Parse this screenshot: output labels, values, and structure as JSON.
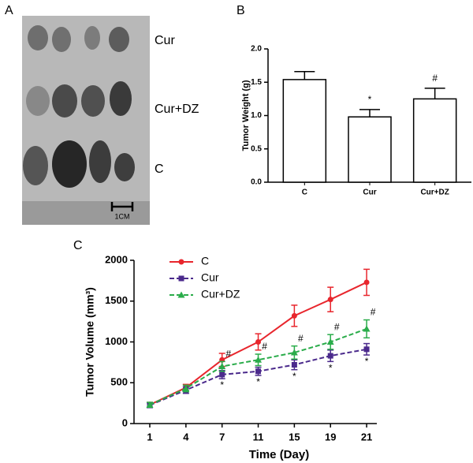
{
  "panel_a": {
    "label": "A",
    "rows": [
      "Cur",
      "Cur+DZ",
      "C"
    ],
    "scale_bar": "1CM"
  },
  "chart_data": [
    {
      "type": "bar",
      "panel": "B",
      "y_label": "Tumor Weight (g)",
      "categories": [
        "C",
        "Cur",
        "Cur+DZ"
      ],
      "values": [
        1.54,
        0.98,
        1.25
      ],
      "errors": [
        0.12,
        0.11,
        0.16
      ],
      "point_labels": [
        null,
        "*",
        "#"
      ],
      "color": "#ffffff",
      "ylim": [
        0,
        2
      ],
      "yticks": [
        {
          "value": 0,
          "label": "0.0"
        },
        {
          "value": 0.5,
          "label": "0.5"
        },
        {
          "value": 1,
          "label": "1.0"
        },
        {
          "value": 1.5,
          "label": "1.5"
        },
        {
          "value": 2,
          "label": "2.0"
        }
      ]
    },
    {
      "type": "line",
      "panel": "C",
      "y_label": "Tumor Volume (mm³)",
      "x_label": "Time (Day)",
      "categories": [
        "1",
        "4",
        "7",
        "11",
        "15",
        "19",
        "21"
      ],
      "series": [
        {
          "name": "C",
          "color": "#e8262d",
          "marker": "circle",
          "dashed": false,
          "values": [
            230,
            440,
            780,
            1000,
            1320,
            1520,
            1730
          ],
          "errors": [
            30,
            40,
            80,
            100,
            130,
            150,
            160
          ],
          "point_labels": [
            null,
            null,
            null,
            null,
            null,
            null,
            null
          ],
          "label_side": "above"
        },
        {
          "name": "Cur",
          "color": "#4b2a8c",
          "marker": "square",
          "dashed": true,
          "values": [
            225,
            410,
            600,
            640,
            720,
            830,
            910
          ],
          "errors": [
            30,
            40,
            50,
            50,
            60,
            70,
            70
          ],
          "point_labels": [
            null,
            null,
            "*",
            "*",
            "*",
            "*",
            "*"
          ],
          "label_side": "below"
        },
        {
          "name": "Cur+DZ",
          "color": "#2aac4a",
          "marker": "triangle",
          "dashed": true,
          "values": [
            230,
            430,
            700,
            780,
            870,
            1000,
            1160
          ],
          "errors": [
            30,
            40,
            60,
            70,
            80,
            90,
            110
          ],
          "point_labels": [
            null,
            null,
            "#",
            "#",
            "#",
            "#",
            "#"
          ],
          "label_side": "above"
        }
      ],
      "ylim": [
        0,
        2000
      ],
      "yticks": [
        0,
        500,
        1000,
        1500,
        2000
      ],
      "legend": "upper left"
    }
  ]
}
